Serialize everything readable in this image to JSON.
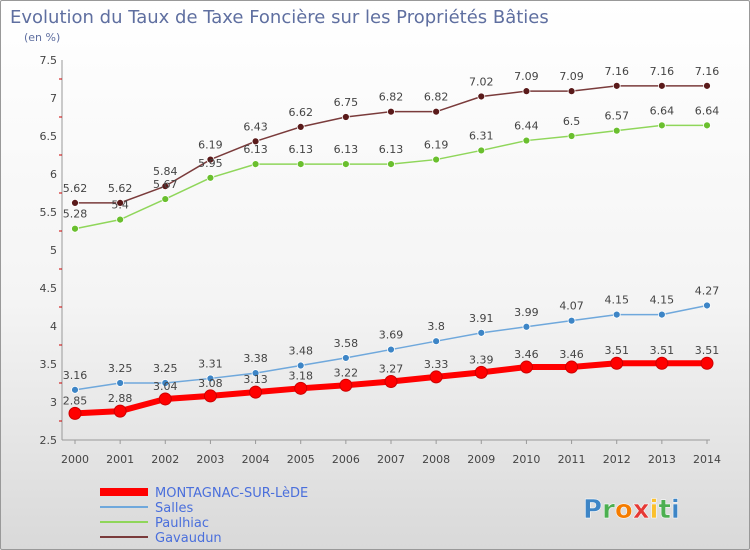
{
  "chart_data": {
    "type": "line",
    "title": "Evolution du Taux de Taxe Foncière sur les Propriétés Bâties",
    "subtitle": "(en %)",
    "xlabel": "",
    "ylabel": "",
    "ylim": [
      2.5,
      7.5
    ],
    "yticks": [
      "2.5",
      "3",
      "3.5",
      "4",
      "4.5",
      "5",
      "5.5",
      "6",
      "6.5",
      "7",
      "7.5"
    ],
    "ytick_values": [
      2.5,
      3,
      3.5,
      4,
      4.5,
      5,
      5.5,
      6,
      6.5,
      7,
      7.5
    ],
    "grid": false,
    "legend_position": "bottom-left",
    "categories": [
      "2000",
      "2001",
      "2002",
      "2003",
      "2004",
      "2005",
      "2006",
      "2007",
      "2008",
      "2009",
      "2010",
      "2011",
      "2012",
      "2013",
      "2014"
    ],
    "series": [
      {
        "name": "MONTAGNAC-SUR-LèDE",
        "color": "#ff0000",
        "marker_color": "#ff0000",
        "values": [
          2.85,
          2.88,
          3.04,
          3.08,
          3.13,
          3.18,
          3.22,
          3.27,
          3.33,
          3.39,
          3.46,
          3.46,
          3.51,
          3.51,
          3.51
        ],
        "labels": [
          "2.85",
          "2.88",
          "3.04",
          "3.08",
          "3.13",
          "3.18",
          "3.22",
          "3.27",
          "3.33",
          "3.39",
          "3.46",
          "3.46",
          "3.51",
          "3.51",
          "3.51"
        ]
      },
      {
        "name": "Salles",
        "color": "#6fa8dc",
        "marker_color": "#3d85c6",
        "values": [
          3.16,
          3.25,
          3.25,
          3.31,
          3.38,
          3.48,
          3.58,
          3.69,
          3.8,
          3.91,
          3.99,
          4.07,
          4.15,
          4.15,
          4.27
        ],
        "labels": [
          "3.16",
          "3.25",
          "3.25",
          "3.31",
          "3.38",
          "3.48",
          "3.58",
          "3.69",
          "3.8",
          "3.91",
          "3.99",
          "4.07",
          "4.15",
          "4.15",
          "4.27"
        ]
      },
      {
        "name": "Paulhiac",
        "color": "#8fd65a",
        "marker_color": "#6abf2e",
        "values": [
          5.28,
          5.4,
          5.67,
          5.95,
          6.13,
          6.13,
          6.13,
          6.13,
          6.19,
          6.31,
          6.44,
          6.5,
          6.57,
          6.64,
          6.64
        ],
        "labels": [
          "5.28",
          "5.4",
          "5.67",
          "5.95",
          "6.13",
          "6.13",
          "6.13",
          "6.13",
          "6.19",
          "6.31",
          "6.44",
          "6.5",
          "6.57",
          "6.64",
          "6.64"
        ]
      },
      {
        "name": "Gavaudun",
        "color": "#7a3b3b",
        "marker_color": "#5a1a1a",
        "values": [
          5.62,
          5.62,
          5.84,
          6.19,
          6.43,
          6.62,
          6.75,
          6.82,
          6.82,
          7.02,
          7.09,
          7.09,
          7.16,
          7.16,
          7.16
        ],
        "labels": [
          "5.62",
          "5.62",
          "5.84",
          "6.19",
          "6.43",
          "6.62",
          "6.75",
          "6.82",
          "6.82",
          "7.02",
          "7.09",
          "7.09",
          "7.16",
          "7.16",
          "7.16"
        ]
      }
    ]
  },
  "logo": {
    "text": "Proxiti"
  }
}
